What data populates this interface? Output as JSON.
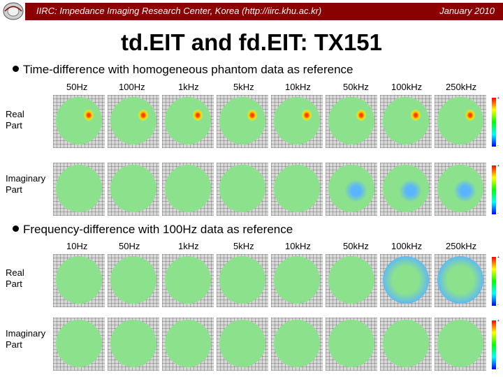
{
  "header": {
    "org": "IIRC: Impedance Imaging Research Center, Korea (http://iirc.khu.ac.kr)",
    "date": "January 2010",
    "colors": {
      "bar": "#8b0000",
      "text": "#ffffff"
    }
  },
  "title": "td.EIT and fd.EIT: TX151",
  "section1": {
    "heading": "Time-difference with homogeneous phantom data as reference",
    "frequencies": [
      "50Hz",
      "100Hz",
      "1kHz",
      "5kHz",
      "10kHz",
      "50kHz",
      "100kHz",
      "250kHz"
    ],
    "rows": [
      {
        "label_line1": "Real",
        "label_line2": "Part"
      },
      {
        "label_line1": "Imaginary",
        "label_line2": "Part"
      }
    ]
  },
  "section2": {
    "heading": "Frequency-difference with 100Hz data as reference",
    "frequencies": [
      "10Hz",
      "50Hz",
      "1kHz",
      "5kHz",
      "10kHz",
      "50kHz",
      "100kHz",
      "250kHz"
    ],
    "rows": [
      {
        "label_line1": "Real",
        "label_line2": "Part"
      },
      {
        "label_line1": "Imaginary",
        "label_line2": "Part"
      }
    ]
  },
  "colorbar": {
    "top_label": "+",
    "bottom_label": "-"
  },
  "image_colors": {
    "background_green": "#8ce28c",
    "hot_spot": "#ff4000",
    "cool_spot": "#5ab4ff"
  }
}
